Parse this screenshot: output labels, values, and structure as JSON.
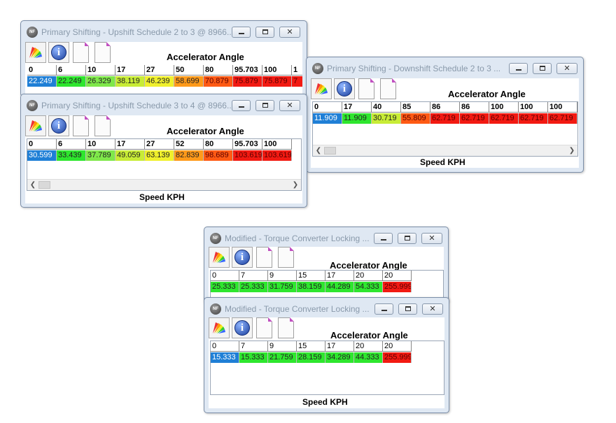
{
  "colors": {
    "blue": "#1f7fd6",
    "green": "#2ee62e",
    "lightgreen": "#7fe84a",
    "yellowgreen": "#c8ec36",
    "yellow": "#f0f02c",
    "orange": "#ff9a1a",
    "orangered": "#ff5a14",
    "red": "#f21a12"
  },
  "icons": {
    "toolbar": [
      "palette-icon",
      "info-icon",
      "document-icon",
      "document-icon"
    ]
  },
  "windows": [
    {
      "title": "Primary Shifting - Upshift Schedule 2 to 3 @ 8966...",
      "caption": "Accelerator Angle",
      "headers": [
        "0",
        "6",
        "10",
        "17",
        "27",
        "50",
        "80",
        "95.703",
        "100",
        "1"
      ],
      "values": [
        "22.249",
        "22.249",
        "26.329",
        "38.119",
        "46.239",
        "58.699",
        "70.879",
        "75.879",
        "75.879",
        "7"
      ],
      "value_colors": [
        "blue",
        "green",
        "lightgreen",
        "yellowgreen",
        "yellow",
        "orange",
        "orangered",
        "red",
        "red",
        "red"
      ]
    },
    {
      "title": "Primary Shifting - Upshift Schedule 3 to 4 @ 8966...",
      "caption": "Accelerator Angle",
      "headers": [
        "0",
        "6",
        "10",
        "17",
        "27",
        "52",
        "80",
        "95.703",
        "100"
      ],
      "values": [
        "30.599",
        "33.439",
        "37.789",
        "49.059",
        "63.139",
        "82.839",
        "98.689",
        "103.619",
        "103.619"
      ],
      "value_colors": [
        "blue",
        "green",
        "lightgreen",
        "yellowgreen",
        "yellow",
        "orange",
        "orangered",
        "red",
        "red"
      ],
      "axis_label": "Speed KPH"
    },
    {
      "title": "Primary Shifting - Downshift Schedule 2 to 3 ...",
      "caption": "Accelerator Angle",
      "headers": [
        "0",
        "17",
        "40",
        "85",
        "86",
        "86",
        "100",
        "100",
        "100"
      ],
      "values": [
        "11.909",
        "11.909",
        "30.719",
        "55.809",
        "62.719",
        "62.719",
        "62.719",
        "62.719",
        "62.719"
      ],
      "value_colors": [
        "blue",
        "green",
        "yellowgreen",
        "orangered",
        "red",
        "red",
        "red",
        "red",
        "red"
      ],
      "axis_label": "Speed KPH"
    },
    {
      "title": "Modified - Torque Converter Locking ...",
      "caption": "Accelerator Angle",
      "headers": [
        "0",
        "7",
        "9",
        "15",
        "17",
        "20",
        "20"
      ],
      "values": [
        "25.333",
        "25.333",
        "31.759",
        "38.159",
        "44.289",
        "54.333",
        "255.999"
      ],
      "value_colors": [
        "green",
        "green",
        "green",
        "green",
        "green",
        "green",
        "red"
      ]
    },
    {
      "title": "Modified - Torque Converter Locking ...",
      "caption": "Accelerator Angle",
      "headers": [
        "0",
        "7",
        "9",
        "15",
        "17",
        "20",
        "20"
      ],
      "values": [
        "15.333",
        "15.333",
        "21.759",
        "28.159",
        "34.289",
        "44.333",
        "255.999"
      ],
      "value_colors": [
        "blue",
        "green",
        "green",
        "green",
        "green",
        "green",
        "red"
      ],
      "axis_label": "Speed KPH"
    }
  ]
}
